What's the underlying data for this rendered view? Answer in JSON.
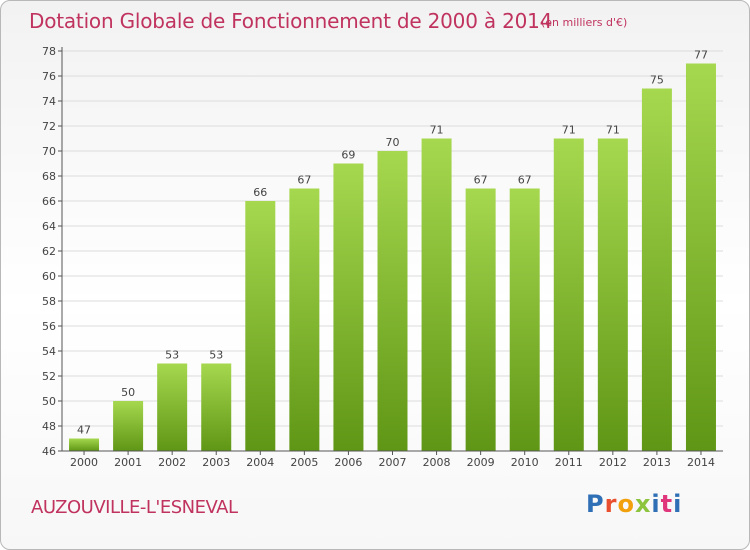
{
  "header": {
    "title": "Dotation Globale de Fonctionnement de 2000 à 2014",
    "unit_note": "(en milliers d'€)"
  },
  "footer": {
    "commune": "AUZOUVILLE-L'ESNEVAL",
    "brand": "Proxiti"
  },
  "colors": {
    "accent": "#c0335f",
    "bar_top": "#a6d84f",
    "bar_bottom": "#5f9615",
    "brand_letters": [
      "#2f6fb6",
      "#e94f2e",
      "#f2a10d",
      "#8cc43e",
      "#2f6fb6",
      "#e0367c",
      "#2f6fb6"
    ]
  },
  "chart_data": {
    "type": "bar",
    "categories": [
      "2000",
      "2001",
      "2002",
      "2003",
      "2004",
      "2005",
      "2006",
      "2007",
      "2008",
      "2009",
      "2010",
      "2011",
      "2012",
      "2013",
      "2014"
    ],
    "values": [
      47,
      50,
      53,
      53,
      66,
      67,
      69,
      70,
      71,
      67,
      67,
      71,
      71,
      75,
      77
    ],
    "ylim": [
      46,
      78
    ],
    "yticks": [
      46,
      48,
      50,
      52,
      54,
      56,
      58,
      60,
      62,
      64,
      66,
      68,
      70,
      72,
      74,
      76,
      78
    ],
    "grid": true,
    "data_labels": true
  }
}
